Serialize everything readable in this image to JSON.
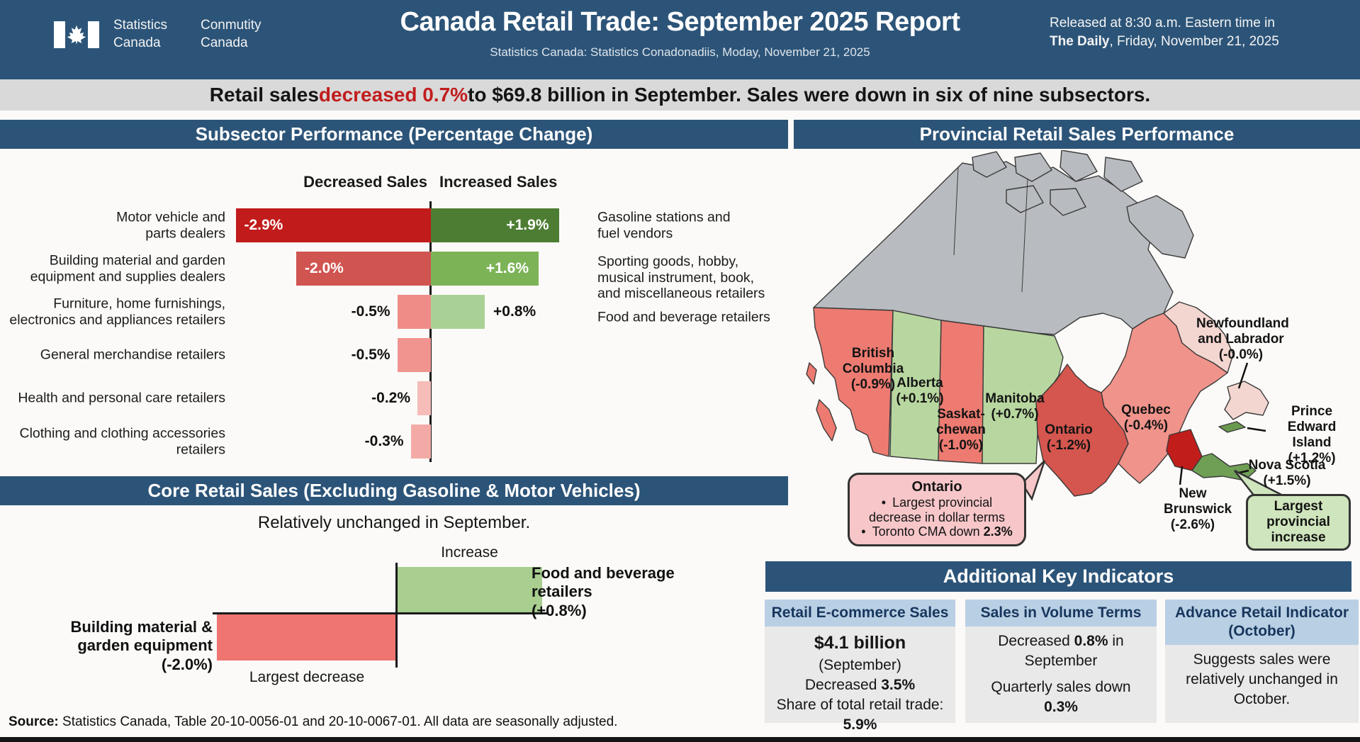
{
  "palette": {
    "navy": "#2c5478",
    "banner_bg": "#d9d9d9",
    "red_accent": "#c11d1d",
    "card_head": "#b9cfe4",
    "card_body": "#e9e9e9"
  },
  "header": {
    "logo_block1": "Statistics\nCanada",
    "logo_block2": "Conmutity\nCanada",
    "title": "Canada Retail Trade: September 2025 Report",
    "subtitle": "Statistics Canada: Statistics Conadonadiis, Moday, November 21, 2025",
    "released_pre": "Released at 8:30 a.m. Eastern time in",
    "released_bold": "The Daily",
    "released_post": ", Friday, November 21, 2025"
  },
  "banner": {
    "pre": "Retail sales ",
    "highlight": "decreased 0.7%",
    "post": " to $69.8 billion in September. Sales were down in six of nine subsectors."
  },
  "subsector": {
    "title": "Subsector Performance (Percentage Change)",
    "decreased_header": "Decreased Sales",
    "increased_header": "Increased Sales",
    "rows": [
      {
        "label": "Motor vehicle and\nparts dealers",
        "dec": 2.9,
        "dec_label": "-2.9%",
        "dec_color": "#c11b1b",
        "inc": 1.9,
        "inc_label": "+1.9%",
        "inc_color": "#4d7d33",
        "inside": true
      },
      {
        "label": "Building material and garden\nequipment and supplies dealers",
        "dec": 2.0,
        "dec_label": "-2.0%",
        "dec_color": "#d05450",
        "inc": 1.6,
        "inc_label": "+1.6%",
        "inc_color": "#7db357",
        "inside": true
      },
      {
        "label": "Furniture, home furnishings,\nelectronics and appliances retailers",
        "dec": 0.5,
        "dec_label": "-0.5%",
        "dec_color": "#ef8c88",
        "inc": 0.8,
        "inc_label": "+0.8%",
        "inc_color": "#aad195",
        "inside": false
      },
      {
        "label": "General merchandise retailers",
        "dec": 0.5,
        "dec_label": "-0.5%",
        "dec_color": "#f19490",
        "inside": false
      },
      {
        "label": "Health and personal care retailers",
        "dec": 0.2,
        "dec_label": "-0.2%",
        "dec_color": "#f6bcb8",
        "inside": false
      },
      {
        "label": "Clothing and clothing accessories\nretailers",
        "dec": 0.3,
        "dec_label": "-0.3%",
        "dec_color": "#f3aaa6",
        "inside": false
      }
    ],
    "right_labels": [
      "Gasoline stations and\nfuel vendors",
      "Sporting goods, hobby,\nmusical instrument, book,\nand miscellaneous retailers",
      "Food and beverage retailers"
    ]
  },
  "core": {
    "title": "Core Retail Sales (Excluding Gasoline & Motor Vehicles)",
    "note": "Relatively unchanged in September.",
    "increase_label": "Increase",
    "up_label": "Food and beverage\nretailers\n(+0.8%)",
    "up_color": "#a8ce90",
    "down_label": "Building material &\ngarden equipment\n(-2.0%)",
    "down_color": "#ee7570",
    "decrease_label": "Largest decrease"
  },
  "map": {
    "title": "Provincial Retail Sales Performance",
    "provinces": [
      {
        "id": "territories",
        "color": "#b8bbbf"
      },
      {
        "id": "bc",
        "label": "British\nColumbia\n(-0.9%)",
        "color": "#ed7b71"
      },
      {
        "id": "ab",
        "label": "Alberta\n(+0.1%)",
        "color": "#b8d7a0"
      },
      {
        "id": "sk",
        "label": "Saskat-\nchewan\n(-1.0%)",
        "color": "#ed7b71"
      },
      {
        "id": "mb",
        "label": "Manitoba\n(+0.7%)",
        "color": "#b8d7a0"
      },
      {
        "id": "on",
        "label": "Ontario\n(-1.2%)",
        "color": "#d5564e"
      },
      {
        "id": "qc",
        "label": "Quebec\n(-0.4%)",
        "color": "#f0938b"
      },
      {
        "id": "nl",
        "label": "Newfoundland\nand Labrador\n(-0.0%)",
        "color": "#f4d6d1"
      },
      {
        "id": "pe",
        "label": "Prince\nEdward Island\n(+1.2%)",
        "color": "#69984f"
      },
      {
        "id": "ns",
        "label": "Nova Scotia\n(+1.5%)",
        "color": "#6f9e55"
      },
      {
        "id": "nb",
        "label": "New\nBrunswick\n(-2.6%)",
        "color": "#c01d1b"
      }
    ],
    "callout_ontario": {
      "title": "Ontario",
      "bullets": [
        [
          {
            "t": "Largest provincial decrease in dollar terms"
          }
        ],
        [
          {
            "t": "Toronto CMA down "
          },
          {
            "t": "2.3%",
            "b": true
          }
        ]
      ]
    },
    "callout_increase": "Largest\nprovincial\nincrease"
  },
  "indicators": {
    "title": "Additional Key Indicators",
    "cards": [
      {
        "header": "Retail E-commerce Sales",
        "lines": [
          [
            {
              "t": "$4.1 billion",
              "b": true,
              "big": true
            }
          ],
          [
            {
              "t": "(September)"
            }
          ],
          [
            {
              "t": "Decreased "
            },
            {
              "t": "3.5%",
              "b": true
            }
          ],
          [
            {
              "t": "Share of total retail trade:"
            }
          ],
          [
            {
              "t": "5.9%",
              "b": true
            }
          ]
        ]
      },
      {
        "header": "Sales in Volume Terms",
        "lines": [
          [
            {
              "t": "Decreased "
            },
            {
              "t": "0.8%",
              "b": true
            },
            {
              "t": " in"
            }
          ],
          [
            {
              "t": "September"
            }
          ],
          [
            {
              "t": ""
            }
          ],
          [
            {
              "t": "Quarterly sales down"
            }
          ],
          [
            {
              "t": "0.3%",
              "b": true
            }
          ]
        ]
      },
      {
        "header": "Advance Retail Indicator\n(October)",
        "lines": [
          [
            {
              "t": "Suggests sales were"
            }
          ],
          [
            {
              "t": "relatively unchanged in"
            }
          ],
          [
            {
              "t": "October."
            }
          ]
        ]
      }
    ]
  },
  "source": {
    "bold": "Source:",
    "text": " Statistics Canada, Table 20-10-0056-01 and 20-10-0067-01. All data are seasonally adjusted."
  },
  "chart_data": [
    {
      "type": "bar",
      "title": "Subsector Performance (Percentage Change)",
      "orientation": "horizontal-diverging",
      "decreased_sales": {
        "categories": [
          "Motor vehicle and parts dealers",
          "Building material and garden equipment and supplies dealers",
          "Furniture, home furnishings, electronics and appliances retailers",
          "General merchandise retailers",
          "Health and personal care retailers",
          "Clothing and clothing accessories retailers"
        ],
        "values_pct": [
          -2.9,
          -2.0,
          -0.5,
          -0.5,
          -0.2,
          -0.3
        ]
      },
      "increased_sales": {
        "categories": [
          "Gasoline stations and fuel vendors",
          "Sporting goods, hobby, musical instrument, book, and miscellaneous retailers",
          "Food and beverage retailers"
        ],
        "values_pct": [
          1.9,
          1.6,
          0.8
        ]
      }
    },
    {
      "type": "bar",
      "title": "Core Retail Sales (Excluding Gasoline & Motor Vehicles)",
      "subtitle": "Relatively unchanged in September.",
      "categories": [
        "Building material & garden equipment",
        "Food and beverage retailers"
      ],
      "values_pct": [
        -2.0,
        0.8
      ],
      "annotations": [
        "Largest decrease",
        "Increase"
      ]
    },
    {
      "type": "table",
      "title": "Provincial Retail Sales Performance",
      "columns": [
        "Province",
        "Change_pct"
      ],
      "rows": [
        [
          "British Columbia",
          -0.9
        ],
        [
          "Alberta",
          0.1
        ],
        [
          "Saskatchewan",
          -1.0
        ],
        [
          "Manitoba",
          0.7
        ],
        [
          "Ontario",
          -1.2
        ],
        [
          "Quebec",
          -0.4
        ],
        [
          "Newfoundland and Labrador",
          0.0
        ],
        [
          "Prince Edward Island",
          1.2
        ],
        [
          "Nova Scotia",
          1.5
        ],
        [
          "New Brunswick",
          -2.6
        ]
      ]
    }
  ]
}
